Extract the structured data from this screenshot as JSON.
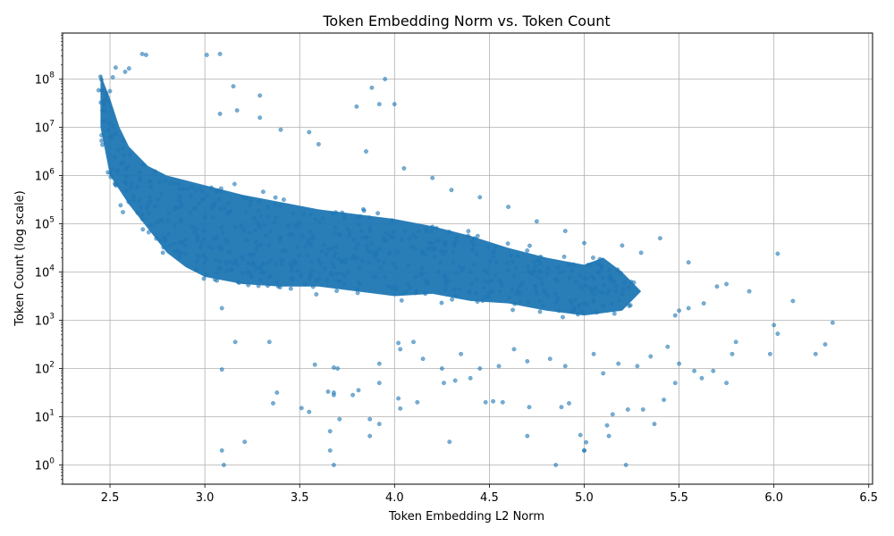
{
  "chart_data": {
    "type": "scatter",
    "title": "Token Embedding Norm vs. Token Count",
    "xlabel": "Token Embedding L2 Norm",
    "ylabel": "Token Count (log scale)",
    "xlim": [
      2.25,
      6.52
    ],
    "ylim": [
      0.4,
      900000000
    ],
    "y_scale": "log",
    "grid": true,
    "point_color": "#1f77b4",
    "point_alpha": 0.6,
    "x_ticks": [
      2.5,
      3.0,
      3.5,
      4.0,
      4.5,
      5.0,
      5.5,
      6.0,
      6.5
    ],
    "x_tick_labels": [
      "2.5",
      "3.0",
      "3.5",
      "4.0",
      "4.5",
      "5.0",
      "5.5",
      "6.0",
      "6.5"
    ],
    "y_ticks": [
      1,
      10,
      100,
      1000,
      10000,
      100000,
      1000000,
      10000000,
      100000000
    ],
    "y_tick_exponents": [
      "0",
      "1",
      "2",
      "3",
      "4",
      "5",
      "6",
      "7",
      "8"
    ],
    "y_tick_base": "10",
    "dense_cloud": [
      [
        2.45,
        8.1
      ],
      [
        2.5,
        7.6
      ],
      [
        2.55,
        7.0
      ],
      [
        2.6,
        6.6
      ],
      [
        2.7,
        6.2
      ],
      [
        2.8,
        6.0
      ],
      [
        2.9,
        5.9
      ],
      [
        3.0,
        5.8
      ],
      [
        3.1,
        5.7
      ],
      [
        3.2,
        5.6
      ],
      [
        3.4,
        5.45
      ],
      [
        3.6,
        5.3
      ],
      [
        3.8,
        5.2
      ],
      [
        4.0,
        5.1
      ],
      [
        4.2,
        4.95
      ],
      [
        4.4,
        4.75
      ],
      [
        4.6,
        4.5
      ],
      [
        4.8,
        4.3
      ],
      [
        5.0,
        4.15
      ],
      [
        5.1,
        4.3
      ],
      [
        5.2,
        4.0
      ],
      [
        5.3,
        3.6
      ],
      [
        5.2,
        3.2
      ],
      [
        5.0,
        3.1
      ],
      [
        4.8,
        3.2
      ],
      [
        4.6,
        3.35
      ],
      [
        4.4,
        3.4
      ],
      [
        4.2,
        3.55
      ],
      [
        4.0,
        3.5
      ],
      [
        3.8,
        3.6
      ],
      [
        3.6,
        3.7
      ],
      [
        3.4,
        3.7
      ],
      [
        3.2,
        3.75
      ],
      [
        3.0,
        3.9
      ],
      [
        2.9,
        4.1
      ],
      [
        2.8,
        4.4
      ],
      [
        2.7,
        4.9
      ],
      [
        2.6,
        5.4
      ],
      [
        2.5,
        6.0
      ],
      [
        2.45,
        7.0
      ]
    ],
    "outliers": [
      [
        2.67,
        8.52
      ],
      [
        2.69,
        8.5
      ],
      [
        3.01,
        8.5
      ],
      [
        3.08,
        8.52
      ],
      [
        2.53,
        8.24
      ],
      [
        2.6,
        8.22
      ],
      [
        2.45,
        8.05
      ],
      [
        2.48,
        7.7
      ],
      [
        2.5,
        7.75
      ],
      [
        2.58,
        8.15
      ],
      [
        3.15,
        7.85
      ],
      [
        3.29,
        7.66
      ],
      [
        3.88,
        7.82
      ],
      [
        3.95,
        8.0
      ],
      [
        3.92,
        7.48
      ],
      [
        4.0,
        7.48
      ],
      [
        3.8,
        7.43
      ],
      [
        3.17,
        7.35
      ],
      [
        3.08,
        7.28
      ],
      [
        3.29,
        7.2
      ],
      [
        2.47,
        7.45
      ],
      [
        2.46,
        7.35
      ],
      [
        3.4,
        6.95
      ],
      [
        3.55,
        6.9
      ],
      [
        3.6,
        6.65
      ],
      [
        3.85,
        6.5
      ],
      [
        4.05,
        6.15
      ],
      [
        4.2,
        5.95
      ],
      [
        4.3,
        5.7
      ],
      [
        4.45,
        5.55
      ],
      [
        4.6,
        5.35
      ],
      [
        4.75,
        5.05
      ],
      [
        4.9,
        4.85
      ],
      [
        5.0,
        4.6
      ],
      [
        5.2,
        4.55
      ],
      [
        5.3,
        4.4
      ],
      [
        5.4,
        4.7
      ],
      [
        5.55,
        4.2
      ],
      [
        5.7,
        3.7
      ],
      [
        5.75,
        3.75
      ],
      [
        6.02,
        4.38
      ],
      [
        6.1,
        3.4
      ],
      [
        5.87,
        3.6
      ],
      [
        6.0,
        2.9
      ],
      [
        6.02,
        2.72
      ],
      [
        6.31,
        2.95
      ],
      [
        5.63,
        3.35
      ],
      [
        5.55,
        3.25
      ],
      [
        5.5,
        3.2
      ],
      [
        5.48,
        3.1
      ],
      [
        5.78,
        2.3
      ],
      [
        5.8,
        2.55
      ],
      [
        5.68,
        1.95
      ],
      [
        5.62,
        1.8
      ],
      [
        5.75,
        1.7
      ],
      [
        6.27,
        2.5
      ],
      [
        6.22,
        2.3
      ],
      [
        5.98,
        2.3
      ],
      [
        5.48,
        1.7
      ],
      [
        5.42,
        1.35
      ],
      [
        5.37,
        0.85
      ],
      [
        5.31,
        1.15
      ],
      [
        5.23,
        1.15
      ],
      [
        5.22,
        0.0
      ],
      [
        5.15,
        1.05
      ],
      [
        5.12,
        0.82
      ],
      [
        5.13,
        0.6
      ],
      [
        5.0,
        0.3
      ],
      [
        5.01,
        0.47
      ],
      [
        5.0,
        0.3
      ],
      [
        4.98,
        0.62
      ],
      [
        4.92,
        1.28
      ],
      [
        4.88,
        1.2
      ],
      [
        4.85,
        0.0
      ],
      [
        4.7,
        0.6
      ],
      [
        4.71,
        1.2
      ],
      [
        4.57,
        1.3
      ],
      [
        4.52,
        1.32
      ],
      [
        4.48,
        1.3
      ],
      [
        4.4,
        1.8
      ],
      [
        4.32,
        1.75
      ],
      [
        4.29,
        0.48
      ],
      [
        4.26,
        1.7
      ],
      [
        4.12,
        1.3
      ],
      [
        4.02,
        1.38
      ],
      [
        4.03,
        1.17
      ],
      [
        3.92,
        1.7
      ],
      [
        3.92,
        0.85
      ],
      [
        3.87,
        0.95
      ],
      [
        3.87,
        0.6
      ],
      [
        3.81,
        1.55
      ],
      [
        3.78,
        1.45
      ],
      [
        3.71,
        0.95
      ],
      [
        3.68,
        1.5
      ],
      [
        3.68,
        1.45
      ],
      [
        3.68,
        0.0
      ],
      [
        3.66,
        0.3
      ],
      [
        3.65,
        1.52
      ],
      [
        3.66,
        0.7
      ],
      [
        3.58,
        2.08
      ],
      [
        3.55,
        1.1
      ],
      [
        3.51,
        1.18
      ],
      [
        3.38,
        1.5
      ],
      [
        3.36,
        1.28
      ],
      [
        3.34,
        2.55
      ],
      [
        3.16,
        2.55
      ],
      [
        3.21,
        0.48
      ],
      [
        3.09,
        0.3
      ],
      [
        3.1,
        0.0
      ],
      [
        3.09,
        1.98
      ],
      [
        3.09,
        3.25
      ],
      [
        3.68,
        2.02
      ],
      [
        3.7,
        2.0
      ],
      [
        3.92,
        2.1
      ],
      [
        4.02,
        2.53
      ],
      [
        4.03,
        2.4
      ],
      [
        4.1,
        2.55
      ],
      [
        4.15,
        2.2
      ],
      [
        4.25,
        2.0
      ],
      [
        4.35,
        2.3
      ],
      [
        4.45,
        2.0
      ],
      [
        4.55,
        2.05
      ],
      [
        4.63,
        2.4
      ],
      [
        4.7,
        2.15
      ],
      [
        4.82,
        2.2
      ],
      [
        4.9,
        2.05
      ],
      [
        5.05,
        2.3
      ],
      [
        5.1,
        1.9
      ],
      [
        5.18,
        2.1
      ],
      [
        5.28,
        2.05
      ],
      [
        5.35,
        2.25
      ],
      [
        5.44,
        2.45
      ],
      [
        5.5,
        2.1
      ],
      [
        5.58,
        1.95
      ]
    ]
  }
}
